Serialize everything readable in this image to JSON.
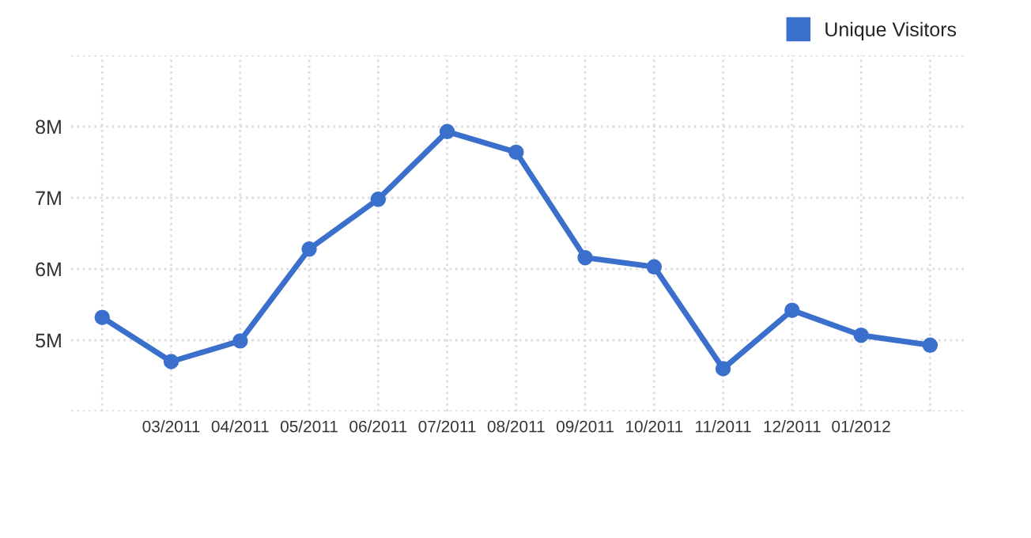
{
  "chart_data": {
    "type": "line",
    "categories": [
      null,
      "03/2011",
      "04/2011",
      "05/2011",
      "06/2011",
      "07/2011",
      "08/2011",
      "09/2011",
      "10/2011",
      "11/2011",
      "12/2011",
      "01/2012",
      null
    ],
    "series": [
      {
        "name": "Unique Visitors",
        "color": "#3a70cc",
        "values": [
          5.32,
          4.7,
          4.99,
          6.28,
          6.98,
          7.93,
          7.64,
          6.16,
          6.03,
          4.6,
          5.42,
          5.07,
          4.93
        ]
      }
    ],
    "ylim": [
      4,
      9
    ],
    "yticks": [
      {
        "value": 4,
        "label": null
      },
      {
        "value": 5,
        "label": "5M"
      },
      {
        "value": 6,
        "label": "6M"
      },
      {
        "value": 7,
        "label": "7M"
      },
      {
        "value": 8,
        "label": "8M"
      },
      {
        "value": 9,
        "label": null
      }
    ],
    "grid": true,
    "legend": "top right",
    "marker": "circle",
    "line_style": "solid"
  }
}
